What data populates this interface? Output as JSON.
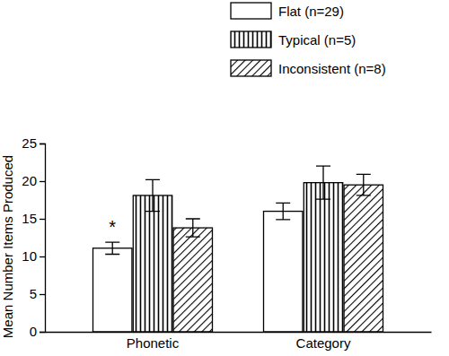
{
  "chart_data": {
    "type": "bar",
    "categories": [
      "Phonetic",
      "Category"
    ],
    "y_label": "Mean Number Items Produced",
    "ylim": [
      0,
      25
    ],
    "yticks": [
      0,
      5,
      10,
      15,
      20,
      25
    ],
    "legend": "top",
    "annotations": [
      "*"
    ],
    "series": [
      {
        "name": "Flat (n=29)",
        "color": "#ffffff",
        "values": [
          11.1,
          16.0
        ],
        "errors": [
          0.8,
          1.1
        ]
      },
      {
        "name": "Typical (n=5)",
        "color": "#ffffff",
        "values": [
          18.1,
          19.8
        ],
        "errors": [
          2.1,
          2.2
        ]
      },
      {
        "name": "Inconsistent (n=8)",
        "color": "#ffffff",
        "values": [
          13.8,
          19.5
        ],
        "errors": [
          1.2,
          1.4
        ]
      }
    ]
  }
}
